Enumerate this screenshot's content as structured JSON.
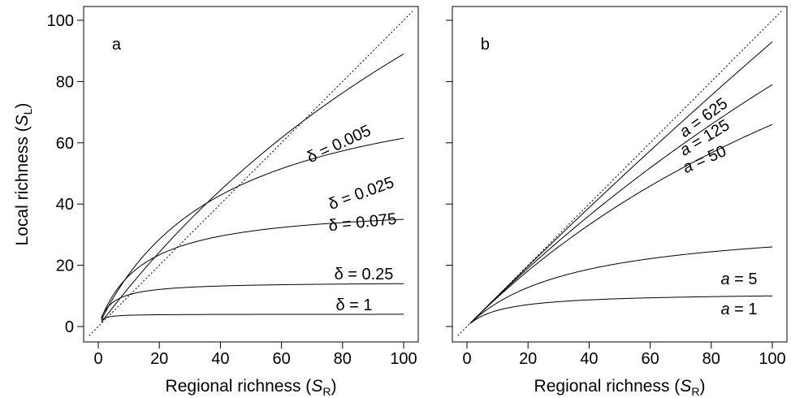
{
  "chart_data": [
    {
      "type": "line",
      "panel_label": "a",
      "xlabel": {
        "prefix": "Regional richness (",
        "var": "S",
        "sub": "R",
        "suffix": ")"
      },
      "ylabel": {
        "prefix": "Local richness (",
        "var": "S",
        "sub": "L",
        "suffix": ")"
      },
      "xlim": [
        -3,
        103
      ],
      "ylim": [
        -3,
        103
      ],
      "xticks": [
        "0",
        "20",
        "40",
        "60",
        "80",
        "100"
      ],
      "yticks": [
        "0",
        "20",
        "40",
        "60",
        "80",
        "100"
      ],
      "reference_line": "1:1",
      "series": [
        {
          "name": "δ = 0.005",
          "value_at_100": 89,
          "k": 0.005
        },
        {
          "name": "δ = 0.025",
          "value_at_100": 61.5,
          "k": 0.0245
        },
        {
          "name": "δ = 0.075",
          "value_at_100": 35,
          "k": 0.0708
        },
        {
          "name": "δ = 0.25",
          "value_at_100": 14,
          "k": 0.247
        },
        {
          "name": "δ = 1",
          "value_at_100": 4,
          "k": 1.0
        }
      ]
    },
    {
      "type": "line",
      "panel_label": "b",
      "xlabel": {
        "prefix": "Regional richness (",
        "var": "S",
        "sub": "R",
        "suffix": ")"
      },
      "xlim": [
        -3,
        103
      ],
      "ylim": [
        -3,
        103
      ],
      "xticks": [
        "0",
        "20",
        "40",
        "60",
        "80",
        "100"
      ],
      "yticks": [
        "0",
        "20",
        "40",
        "60",
        "80",
        "100"
      ],
      "reference_line": "1:1",
      "series": [
        {
          "name": "a = 625",
          "value_at_100": 93,
          "k": 0.00075
        },
        {
          "name": "a = 125",
          "value_at_100": 79,
          "k": 0.0027
        },
        {
          "name": "a = 50",
          "value_at_100": 66,
          "k": 0.0052
        },
        {
          "name": "a = 5",
          "value_at_100": 26,
          "k": 0.0285
        },
        {
          "name": "a = 1",
          "value_at_100": 10,
          "k": 0.09
        }
      ]
    }
  ]
}
